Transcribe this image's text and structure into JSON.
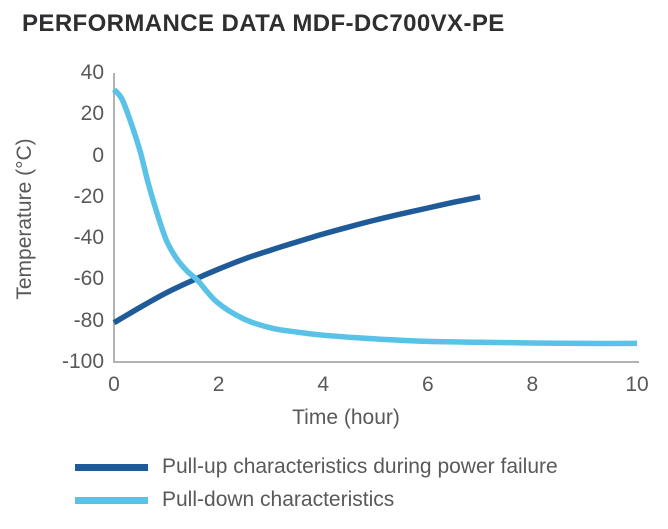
{
  "page": {
    "title": "PERFORMANCE DATA MDF-DC700VX-PE"
  },
  "colors": {
    "pull_up": "#1f5b99",
    "pull_down": "#5bc2e7",
    "axis_line": "#b1b2b4",
    "tick_text": "#58595b",
    "title_text": "#2f2f31"
  },
  "chart_data": {
    "type": "line",
    "title": "PERFORMANCE DATA MDF-DC700VX-PE",
    "xlabel": "Time (hour)",
    "ylabel": "Temperature (°C)",
    "xlim": [
      0,
      10
    ],
    "ylim": [
      -100,
      40
    ],
    "xticks": [
      0,
      2,
      4,
      6,
      8,
      10
    ],
    "xtick_labels": [
      "0",
      "2",
      "4",
      "6",
      "8",
      "10"
    ],
    "yticks": [
      40,
      20,
      0,
      -20,
      -40,
      -60,
      -80,
      -100
    ],
    "ytick_labels": [
      "40",
      "20",
      "0",
      "-20",
      "-40",
      "-60",
      "-80",
      "-100"
    ],
    "grid": false,
    "legend_position": "bottom-left",
    "series": [
      {
        "name": "Pull-up characteristics during power failure",
        "color": "#1f5b99",
        "points": [
          [
            0,
            -81
          ],
          [
            0.5,
            -73.5
          ],
          [
            1,
            -66.5
          ],
          [
            1.5,
            -60.5
          ],
          [
            2,
            -55
          ],
          [
            2.5,
            -50
          ],
          [
            3,
            -45.8
          ],
          [
            3.5,
            -41.8
          ],
          [
            4,
            -38
          ],
          [
            4.5,
            -34.5
          ],
          [
            5,
            -31.2
          ],
          [
            5.5,
            -28.2
          ],
          [
            6,
            -25.4
          ],
          [
            6.5,
            -22.6
          ],
          [
            7,
            -20
          ]
        ]
      },
      {
        "name": "Pull-down characteristics",
        "color": "#5bc2e7",
        "points": [
          [
            0,
            32
          ],
          [
            0.15,
            27.5
          ],
          [
            0.31,
            17
          ],
          [
            0.5,
            2
          ],
          [
            0.65,
            -13
          ],
          [
            0.8,
            -26
          ],
          [
            1,
            -41
          ],
          [
            1.2,
            -50
          ],
          [
            1.4,
            -56
          ],
          [
            1.6,
            -60.5
          ],
          [
            1.97,
            -71
          ],
          [
            2.47,
            -79
          ],
          [
            3,
            -83.5
          ],
          [
            3.5,
            -85.5
          ],
          [
            4,
            -87
          ],
          [
            4.5,
            -88
          ],
          [
            5,
            -88.8
          ],
          [
            6,
            -90
          ],
          [
            7,
            -90.4
          ],
          [
            8,
            -90.8
          ],
          [
            9,
            -91
          ],
          [
            10,
            -91
          ]
        ]
      }
    ]
  }
}
